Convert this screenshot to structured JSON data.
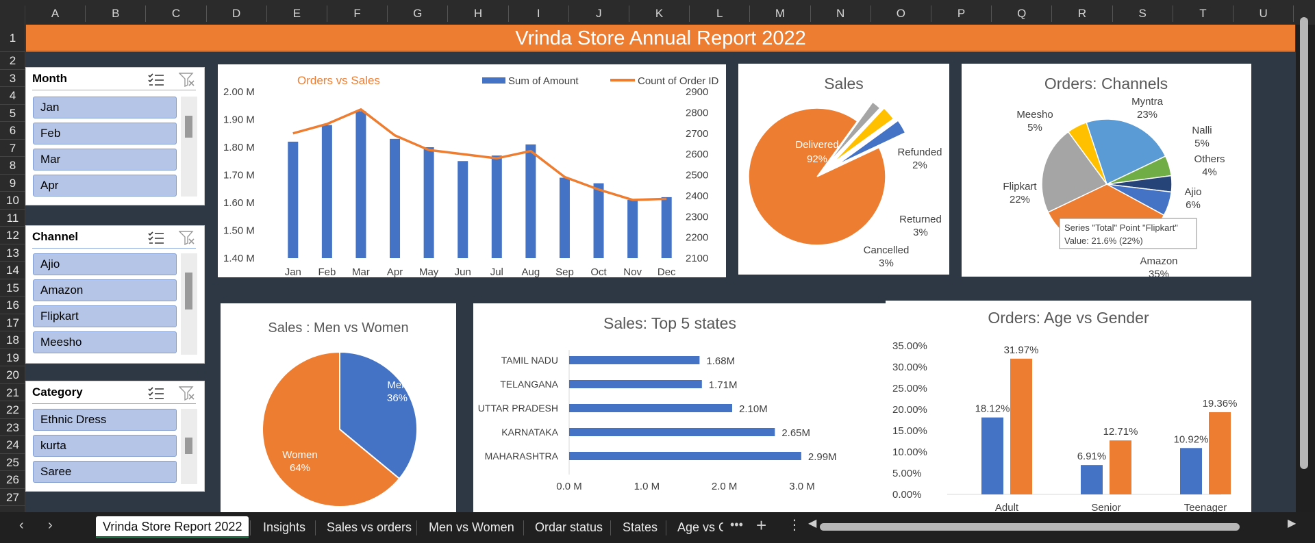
{
  "columns": [
    "A",
    "B",
    "C",
    "D",
    "E",
    "F",
    "G",
    "H",
    "I",
    "J",
    "K",
    "L",
    "M",
    "N",
    "O",
    "P",
    "Q",
    "R",
    "S",
    "T",
    "U"
  ],
  "rows": [
    "1",
    "2",
    "3",
    "4",
    "5",
    "6",
    "7",
    "8",
    "9",
    "10",
    "11",
    "12",
    "13",
    "14",
    "15",
    "16",
    "17",
    "18",
    "19",
    "20",
    "21",
    "22",
    "23",
    "24",
    "25",
    "26",
    "27"
  ],
  "report_title": "Vrinda Store Annual Report 2022",
  "slicers": {
    "month": {
      "header": "Month",
      "items": [
        "Jan",
        "Feb",
        "Mar",
        "Apr"
      ]
    },
    "channel": {
      "header": "Channel",
      "items": [
        "Ajio",
        "Amazon",
        "Flipkart",
        "Meesho"
      ]
    },
    "category": {
      "header": "Category",
      "items": [
        "Ethnic Dress",
        "kurta",
        "Saree"
      ]
    }
  },
  "icons": {
    "multi_select": "multi-select-icon",
    "clear_filter": "clear-filter-icon"
  },
  "colors": {
    "accent_orange": "#ed7d31",
    "blue": "#4472c4",
    "gray": "#a5a5a5",
    "gold": "#ffc000",
    "light_blue": "#5b9bd5",
    "green": "#70ad47",
    "navy": "#264478",
    "sheet_bg": "#2d3844"
  },
  "chart_data": [
    {
      "type": "bar",
      "title": "Orders vs Sales",
      "categories": [
        "Jan",
        "Feb",
        "Mar",
        "Apr",
        "May",
        "Jun",
        "Jul",
        "Aug",
        "Sep",
        "Oct",
        "Nov",
        "Dec"
      ],
      "series": [
        {
          "name": "Sum of Amount",
          "kind": "bar",
          "axis": "left",
          "values": [
            1.82,
            1.88,
            1.93,
            1.83,
            1.8,
            1.75,
            1.77,
            1.81,
            1.69,
            1.67,
            1.61,
            1.62
          ]
        },
        {
          "name": "Count of Order ID",
          "kind": "line",
          "axis": "right",
          "values": [
            2700,
            2745,
            2815,
            2690,
            2620,
            2600,
            2580,
            2615,
            2490,
            2430,
            2380,
            2385
          ]
        }
      ],
      "left_ticks": [
        "2.00 M",
        "1.90 M",
        "1.80 M",
        "1.70 M",
        "1.60 M",
        "1.50 M",
        "1.40 M"
      ],
      "right_ticks": [
        "2900",
        "2800",
        "2700",
        "2600",
        "2500",
        "2400",
        "2300",
        "2200",
        "2100"
      ],
      "ylim_left": [
        1.4,
        2.0
      ],
      "ylim_right": [
        2100,
        2900
      ],
      "legend": "top"
    },
    {
      "type": "pie",
      "title": "Sales",
      "slices": [
        {
          "label": "Delivered",
          "pct": 92,
          "text": "92%",
          "color": "#ed7d31"
        },
        {
          "label": "Refunded",
          "pct": 2,
          "text": "2%",
          "color": "#a5a5a5"
        },
        {
          "label": "Cancelled",
          "pct": 3,
          "text": "3%",
          "color": "#ffc000"
        },
        {
          "label": "Returned",
          "pct": 3,
          "text": "3%",
          "color": "#4472c4"
        }
      ]
    },
    {
      "type": "pie",
      "title": "Orders: Channels",
      "slices": [
        {
          "label": "Myntra",
          "pct": 23,
          "text": "23%",
          "color": "#5b9bd5"
        },
        {
          "label": "Nalli",
          "pct": 5,
          "text": "5%",
          "color": "#70ad47"
        },
        {
          "label": "Others",
          "pct": 4,
          "text": "4%",
          "color": "#264478"
        },
        {
          "label": "Ajio",
          "pct": 6,
          "text": "6%",
          "color": "#4472c4"
        },
        {
          "label": "Amazon",
          "pct": 35,
          "text": "35%",
          "color": "#ed7d31"
        },
        {
          "label": "Flipkart",
          "pct": 22,
          "text": "22%",
          "color": "#a5a5a5"
        },
        {
          "label": "Meesho",
          "pct": 5,
          "text": "5%",
          "color": "#ffc000"
        }
      ],
      "tooltip": {
        "line1": "Series \"Total\" Point \"Flipkart\"",
        "line2": "Value: 21.6% (22%)"
      }
    },
    {
      "type": "pie",
      "title": "Sales : Men vs Women",
      "slices": [
        {
          "label": "Men",
          "pct": 36,
          "text": "36%",
          "color": "#4472c4"
        },
        {
          "label": "Women",
          "pct": 64,
          "text": "64%",
          "color": "#ed7d31"
        }
      ]
    },
    {
      "type": "bar",
      "orientation": "horizontal",
      "title": "Sales: Top 5 states",
      "categories": [
        "TAMIL NADU",
        "TELANGANA",
        "UTTAR PRADESH",
        "KARNATAKA",
        "MAHARASHTRA"
      ],
      "values": [
        1.68,
        1.71,
        2.1,
        2.65,
        2.99
      ],
      "value_labels": [
        "1.68M",
        "1.71M",
        "2.10M",
        "2.65M",
        "2.99M"
      ],
      "x_ticks": [
        "0.0 M",
        "1.0 M",
        "2.0 M",
        "3.0 M"
      ],
      "xlim": [
        0,
        3.0
      ]
    },
    {
      "type": "bar",
      "title": "Orders: Age vs Gender",
      "categories": [
        "Adult",
        "Senior",
        "Teenager"
      ],
      "series": [
        {
          "values": [
            18.12,
            6.91,
            10.92
          ],
          "labels": [
            "18.12%",
            "6.91%",
            "10.92%"
          ],
          "color": "#4472c4"
        },
        {
          "values": [
            31.97,
            12.71,
            19.36
          ],
          "labels": [
            "31.97%",
            "12.71%",
            "19.36%"
          ],
          "color": "#ed7d31"
        }
      ],
      "y_ticks": [
        "35.00%",
        "30.00%",
        "25.00%",
        "20.00%",
        "15.00%",
        "10.00%",
        "5.00%",
        "0.00%"
      ],
      "ylim": [
        0,
        35
      ]
    }
  ],
  "tabs": [
    "Vrinda Store Report 2022",
    "Insights",
    "Sales vs orders",
    "Men vs Women",
    "Ordar status",
    "States",
    "Age vs G"
  ]
}
